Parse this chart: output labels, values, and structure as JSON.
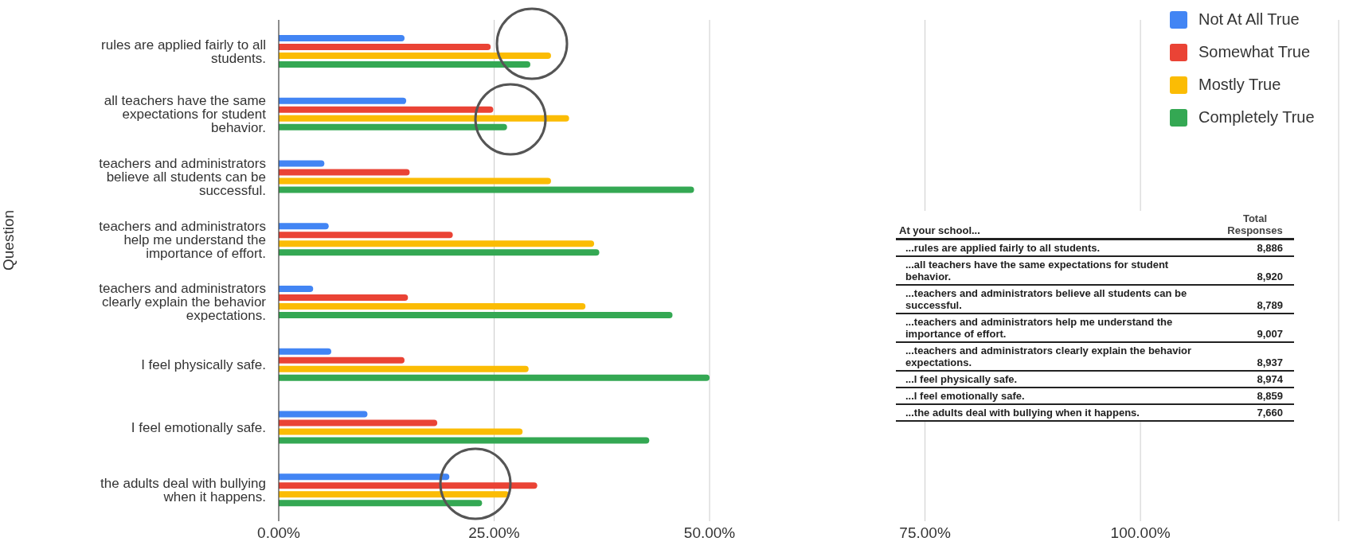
{
  "chart_data": [
    {
      "type": "bar",
      "orientation": "horizontal",
      "ylabel": "Question",
      "categories": [
        "rules are applied fairly to all students.",
        "all teachers have the same expectations for student behavior.",
        "teachers and administrators believe all students can be successful.",
        "teachers and administrators help me understand the importance of effort.",
        "teachers and administrators clearly explain the behavior expectations.",
        "I feel physically safe.",
        "I feel emotionally safe.",
        "the adults deal with bullying when it happens."
      ],
      "series": [
        {
          "name": "Not At All True",
          "color": "#4285f4",
          "values": [
            14.6,
            14.8,
            5.3,
            5.8,
            4.0,
            6.1,
            10.3,
            19.8
          ]
        },
        {
          "name": "Somewhat True",
          "color": "#ea4335",
          "values": [
            24.6,
            24.9,
            15.2,
            20.2,
            15.0,
            14.6,
            18.4,
            30.0
          ]
        },
        {
          "name": "Mostly True",
          "color": "#fbbc04",
          "values": [
            31.6,
            33.7,
            31.6,
            36.6,
            35.6,
            29.0,
            28.3,
            26.7
          ]
        },
        {
          "name": "Completely True",
          "color": "#34a853",
          "values": [
            29.2,
            26.5,
            48.2,
            37.2,
            45.7,
            50.0,
            43.0,
            23.6
          ]
        }
      ],
      "xlim": [
        0,
        123
      ],
      "xticks": [
        {
          "value": 0,
          "label": "0.00%"
        },
        {
          "value": 25,
          "label": "25.00%"
        },
        {
          "value": 50,
          "label": "50.00%"
        },
        {
          "value": 75,
          "label": "75.00%"
        },
        {
          "value": 100,
          "label": "100.00%"
        }
      ],
      "grid": "x",
      "legend": "top right"
    },
    {
      "type": "other",
      "annotations": [
        "At your school...",
        "Total Responses"
      ],
      "categories": [
        "...rules are applied fairly to all students.",
        "...all teachers have the same expectations for student behavior.",
        "...teachers and administrators believe all students can be successful.",
        "...teachers and administrators help me understand the importance of effort.",
        "...teachers and administrators clearly explain the behavior expectations.",
        "...I feel physically safe.",
        "...I feel emotionally safe.",
        "...the adults deal with bullying when it happens."
      ],
      "value_labels": [
        "8,886",
        "8,920",
        "8,789",
        "9,007",
        "8,937",
        "8,974",
        "8,859",
        "7,660"
      ]
    }
  ]
}
